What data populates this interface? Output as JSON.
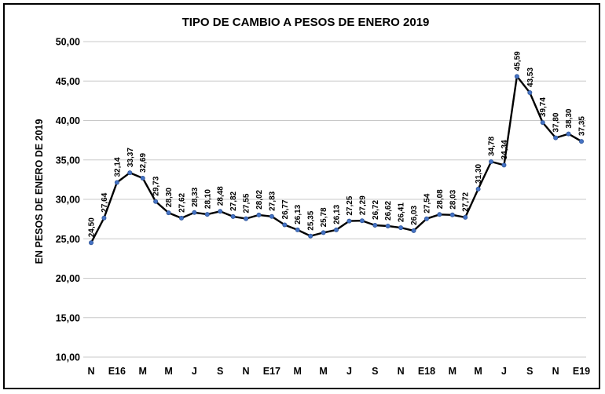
{
  "chart_data": {
    "type": "line",
    "title": "TIPO DE CAMBIO A PESOS DE ENERO 2019",
    "ylabel": "EN PESOS DE ENERO DE 2019",
    "xlabel": "",
    "ylim": [
      10,
      50
    ],
    "yticks": [
      "10,00",
      "15,00",
      "20,00",
      "25,00",
      "30,00",
      "35,00",
      "40,00",
      "45,00",
      "50,00"
    ],
    "x_tick_labels": [
      "N",
      "E16",
      "M",
      "M",
      "J",
      "S",
      "N",
      "E17",
      "M",
      "M",
      "J",
      "S",
      "N",
      "E18",
      "M",
      "M",
      "J",
      "S",
      "N",
      "E19"
    ],
    "grid": "horizontal",
    "legend": "none",
    "line_color": "#000000",
    "marker_color": "#4472C4",
    "series": [
      {
        "values": [
          24.5,
          27.64,
          32.14,
          33.37,
          32.69,
          29.73,
          28.3,
          27.62,
          28.33,
          28.1,
          28.48,
          27.82,
          27.55,
          28.02,
          27.83,
          26.77,
          26.13,
          25.35,
          25.78,
          26.13,
          27.25,
          27.29,
          26.72,
          26.62,
          26.41,
          26.03,
          27.54,
          28.08,
          28.03,
          27.72,
          31.3,
          34.78,
          34.34,
          45.59,
          43.53,
          39.74,
          37.8,
          38.3,
          37.35
        ],
        "labels": [
          "24,50",
          "27,64",
          "32,14",
          "33,37",
          "32,69",
          "29,73",
          "28,30",
          "27,62",
          "28,33",
          "28,10",
          "28,48",
          "27,82",
          "27,55",
          "28,02",
          "27,83",
          "26,77",
          "26,13",
          "25,35",
          "25,78",
          "26,13",
          "27,25",
          "27,29",
          "26,72",
          "26,62",
          "26,41",
          "26,03",
          "27,54",
          "28,08",
          "28,03",
          "27,72",
          "31,30",
          "34,78",
          "34,34",
          "45,59",
          "43,53",
          "39,74",
          "37,80",
          "38,30",
          "37,35"
        ]
      }
    ]
  }
}
